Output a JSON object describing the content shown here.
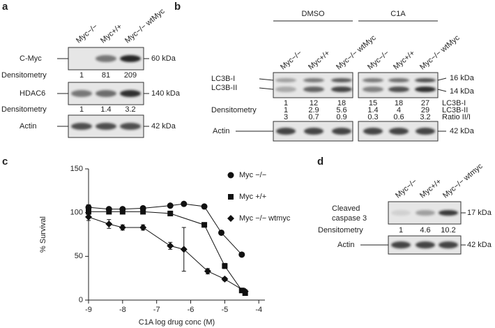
{
  "panel_a": {
    "label": "a",
    "lanes": [
      "Myc−/−",
      "Myc+/+",
      "Myc−/− wtMyc"
    ],
    "blots": [
      {
        "name": "C-Myc",
        "size": "60 kDa"
      },
      {
        "name": "HDAC6",
        "size": "140 kDa"
      },
      {
        "name": "Actin",
        "size": "42 kDa"
      }
    ],
    "densitometry_label": "Densitometry",
    "densitometry": [
      [
        1,
        81,
        209
      ],
      [
        1,
        1.4,
        3.2
      ]
    ]
  },
  "panel_b": {
    "label": "b",
    "groups": [
      "DMSO",
      "C1A"
    ],
    "lanes": [
      "Myc−/−",
      "Myc+/+",
      "Myc−/− wtMyc",
      "Myc−/−",
      "Myc+/+",
      "Myc−/− wtMyc"
    ],
    "bands": [
      "LC3B-I",
      "LC3B-II"
    ],
    "band_sizes": [
      "16 kDa",
      "14 kDa"
    ],
    "densitometry_label": "Densitometry",
    "densitometry": [
      {
        "name": "LC3B-I",
        "values": [
          1,
          12,
          18,
          15,
          18,
          27
        ]
      },
      {
        "name": "LC3B-II",
        "values": [
          1,
          2.9,
          5.6,
          1.4,
          4,
          29
        ]
      },
      {
        "name": "Ratio II/I",
        "values": [
          3,
          0.7,
          0.9,
          0.3,
          0.6,
          3.2
        ]
      }
    ],
    "loading": {
      "name": "Actin",
      "size": "42 kDa"
    }
  },
  "chart_data": {
    "type": "scatter",
    "panel_label": "c",
    "x_label": "C1A log drug conc (M)",
    "y_label": "% Survival",
    "xlim": [
      -9,
      -3.82
    ],
    "xticks": [
      -9,
      -8,
      -7,
      -6,
      -5,
      -4
    ],
    "ylim": [
      0,
      150
    ],
    "yticks": [
      0,
      50,
      100,
      150
    ],
    "fit_line": true,
    "series": [
      {
        "name": "Myc −/−",
        "color": "#111111",
        "marker": "circle",
        "x": [
          -9,
          -8.4,
          -8,
          -7.4,
          -6.6,
          -6.2,
          -5.6,
          -5.1,
          -4.5
        ],
        "values": [
          106,
          104,
          104,
          105,
          108,
          110,
          107,
          77,
          52
        ],
        "errors": [
          3,
          2,
          2,
          2,
          2,
          2,
          2,
          2,
          2
        ]
      },
      {
        "name": "Myc +/+",
        "color": "#111111",
        "marker": "square",
        "x": [
          -9,
          -8.4,
          -8,
          -7.4,
          -6.6,
          -5.6,
          -5.0,
          -4.5,
          -4.4
        ],
        "values": [
          101,
          101,
          101,
          101,
          99,
          86,
          39,
          11,
          8
        ],
        "errors": [
          3,
          2,
          2,
          2,
          2,
          2,
          3,
          2,
          2
        ]
      },
      {
        "name": "Myc −/− wtmyc",
        "color": "#111111",
        "marker": "diamond",
        "x": [
          -9,
          -8.4,
          -8,
          -7.4,
          -6.6,
          -6.2,
          -5.5,
          -5.0,
          -4.4
        ],
        "values": [
          95,
          87,
          83,
          83,
          62,
          58,
          33,
          24,
          10
        ],
        "errors": [
          4,
          5,
          3,
          3,
          4,
          25,
          3,
          2,
          2
        ]
      }
    ]
  },
  "panel_d": {
    "label": "d",
    "lanes": [
      "Myc−/−",
      "Myc+/+",
      "Myc−/− wtmyc"
    ],
    "blot": {
      "name": [
        "Cleaved",
        "caspase 3"
      ],
      "size": "17 kDa"
    },
    "densitometry_label": "Densitometry",
    "densitometry": [
      1,
      4.6,
      10.2
    ],
    "loading": {
      "name": "Actin",
      "size": "42 kDa"
    }
  }
}
